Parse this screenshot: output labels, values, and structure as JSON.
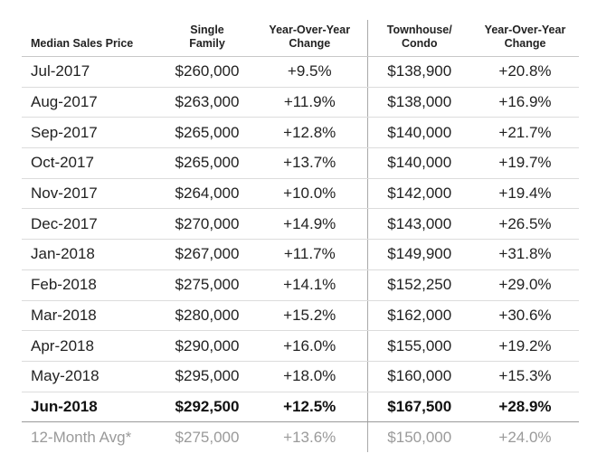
{
  "chart_data": {
    "type": "table",
    "columns": [
      "Median Sales Price",
      "Single\nFamily",
      "Year-Over-Year\nChange",
      "Townhouse/\nCondo",
      "Year-Over-Year\nChange"
    ],
    "rows": [
      {
        "month": "Jul-2017",
        "single_family": "$260,000",
        "sf_change": "+9.5%",
        "townhouse_condo": "$138,900",
        "tc_change": "+20.8%"
      },
      {
        "month": "Aug-2017",
        "single_family": "$263,000",
        "sf_change": "+11.9%",
        "townhouse_condo": "$138,000",
        "tc_change": "+16.9%"
      },
      {
        "month": "Sep-2017",
        "single_family": "$265,000",
        "sf_change": "+12.8%",
        "townhouse_condo": "$140,000",
        "tc_change": "+21.7%"
      },
      {
        "month": "Oct-2017",
        "single_family": "$265,000",
        "sf_change": "+13.7%",
        "townhouse_condo": "$140,000",
        "tc_change": "+19.7%"
      },
      {
        "month": "Nov-2017",
        "single_family": "$264,000",
        "sf_change": "+10.0%",
        "townhouse_condo": "$142,000",
        "tc_change": "+19.4%"
      },
      {
        "month": "Dec-2017",
        "single_family": "$270,000",
        "sf_change": "+14.9%",
        "townhouse_condo": "$143,000",
        "tc_change": "+26.5%"
      },
      {
        "month": "Jan-2018",
        "single_family": "$267,000",
        "sf_change": "+11.7%",
        "townhouse_condo": "$149,900",
        "tc_change": "+31.8%"
      },
      {
        "month": "Feb-2018",
        "single_family": "$275,000",
        "sf_change": "+14.1%",
        "townhouse_condo": "$152,250",
        "tc_change": "+29.0%"
      },
      {
        "month": "Mar-2018",
        "single_family": "$280,000",
        "sf_change": "+15.2%",
        "townhouse_condo": "$162,000",
        "tc_change": "+30.6%"
      },
      {
        "month": "Apr-2018",
        "single_family": "$290,000",
        "sf_change": "+16.0%",
        "townhouse_condo": "$155,000",
        "tc_change": "+19.2%"
      },
      {
        "month": "May-2018",
        "single_family": "$295,000",
        "sf_change": "+18.0%",
        "townhouse_condo": "$160,000",
        "tc_change": "+15.3%"
      },
      {
        "month": "Jun-2018",
        "single_family": "$292,500",
        "sf_change": "+12.5%",
        "townhouse_condo": "$167,500",
        "tc_change": "+28.9%",
        "emphasis": "bold"
      },
      {
        "month": "12-Month Avg*",
        "single_family": "$275,000",
        "sf_change": "+13.6%",
        "townhouse_condo": "$150,000",
        "tc_change": "+24.0%",
        "emphasis": "muted"
      }
    ],
    "colors": {
      "text": "#222222",
      "muted": "#9a9a9a",
      "separator": "#a9a9a9"
    }
  }
}
